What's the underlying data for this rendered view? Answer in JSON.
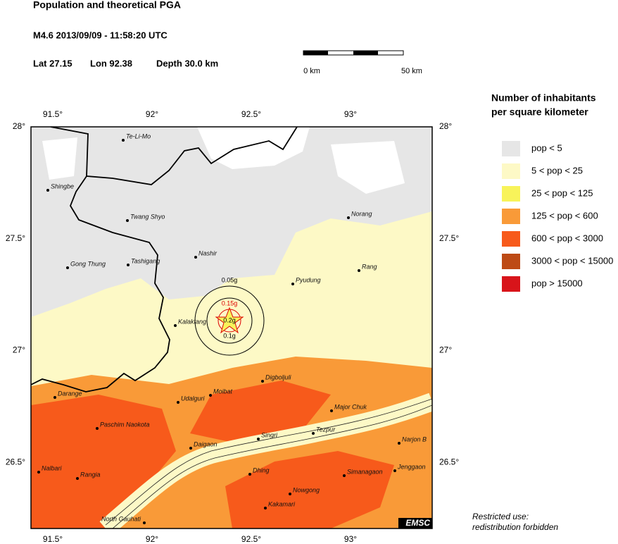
{
  "header": {
    "title": "Population and theoretical PGA",
    "event": "M4.6  2013/09/09 - 11:58:20 UTC",
    "location": [
      "Lat 27.15",
      "Lon 92.38",
      "Depth  30.0 km"
    ]
  },
  "scale_bar": [
    "0 km",
    "50 km"
  ],
  "lon_labels": [
    "91.5°",
    "92°",
    "92.5°",
    "93°"
  ],
  "lat_labels": [
    "28°",
    "27.5°",
    "27°",
    "26.5°"
  ],
  "cities": [
    "Te-Li-Mo",
    "Shingbe",
    "Twang Shyo",
    "Nashir",
    "Gong Thung",
    "Tashigang",
    "Pyudung",
    "Norang",
    "Rang",
    "Kalaktang",
    "Digboljuli",
    "Darange",
    "Moibat",
    "Udalguri",
    "Major Chuk",
    "Paschim Naokota",
    "Tezpur",
    "Singri",
    "Daigaon",
    "Narjon B",
    "Nalbari",
    "Rangia",
    "Dhing",
    "Simanagaon",
    "Jenggaon",
    "Nowgong",
    "Kakamari",
    "North Gauhati"
  ],
  "pga_labels": [
    "0.05g",
    "0.15g",
    "0.2g",
    "0.1g"
  ],
  "legend": {
    "title": [
      "Number of inhabitants",
      "per square kilometer"
    ],
    "items": [
      {
        "label": "pop < 5",
        "color": "#e6e6e6"
      },
      {
        "label": "5 < pop < 25",
        "color": "#fdf9c6"
      },
      {
        "label": "25 < pop < 125",
        "color": "#f8f35a"
      },
      {
        "label": "125 < pop < 600",
        "color": "#f99a38"
      },
      {
        "label": "600 < pop < 3000",
        "color": "#f75a1b"
      },
      {
        "label": "3000 < pop < 15000",
        "color": "#bd4a15"
      },
      {
        "label": "pop > 15000",
        "color": "#d8141a"
      }
    ]
  },
  "logo": "EMSC",
  "note": [
    "Restricted use:",
    "redistribution forbidden"
  ]
}
